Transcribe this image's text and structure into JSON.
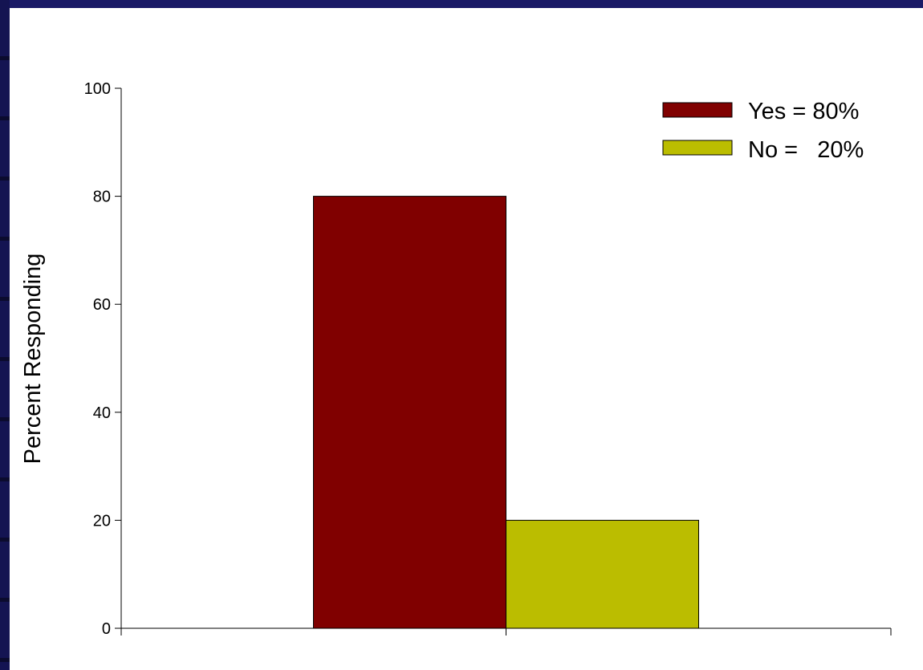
{
  "chart_data": {
    "type": "bar",
    "categories": [
      ""
    ],
    "series": [
      {
        "name": "Yes",
        "values": [
          80
        ],
        "color": "#800000"
      },
      {
        "name": "No",
        "values": [
          20
        ],
        "color": "#bbbd00"
      }
    ],
    "ylabel": "Percent Responding",
    "xlabel": "",
    "ylim": [
      0,
      100
    ],
    "yticks": [
      "0",
      "20",
      "40",
      "60",
      "80",
      "100"
    ],
    "legend": {
      "position": "top-right",
      "entries": [
        "Yes = 80%",
        "No =   20%"
      ]
    },
    "grid": false
  },
  "colors": {
    "background": "#1a1a66",
    "plot_area": "#ffffff"
  }
}
